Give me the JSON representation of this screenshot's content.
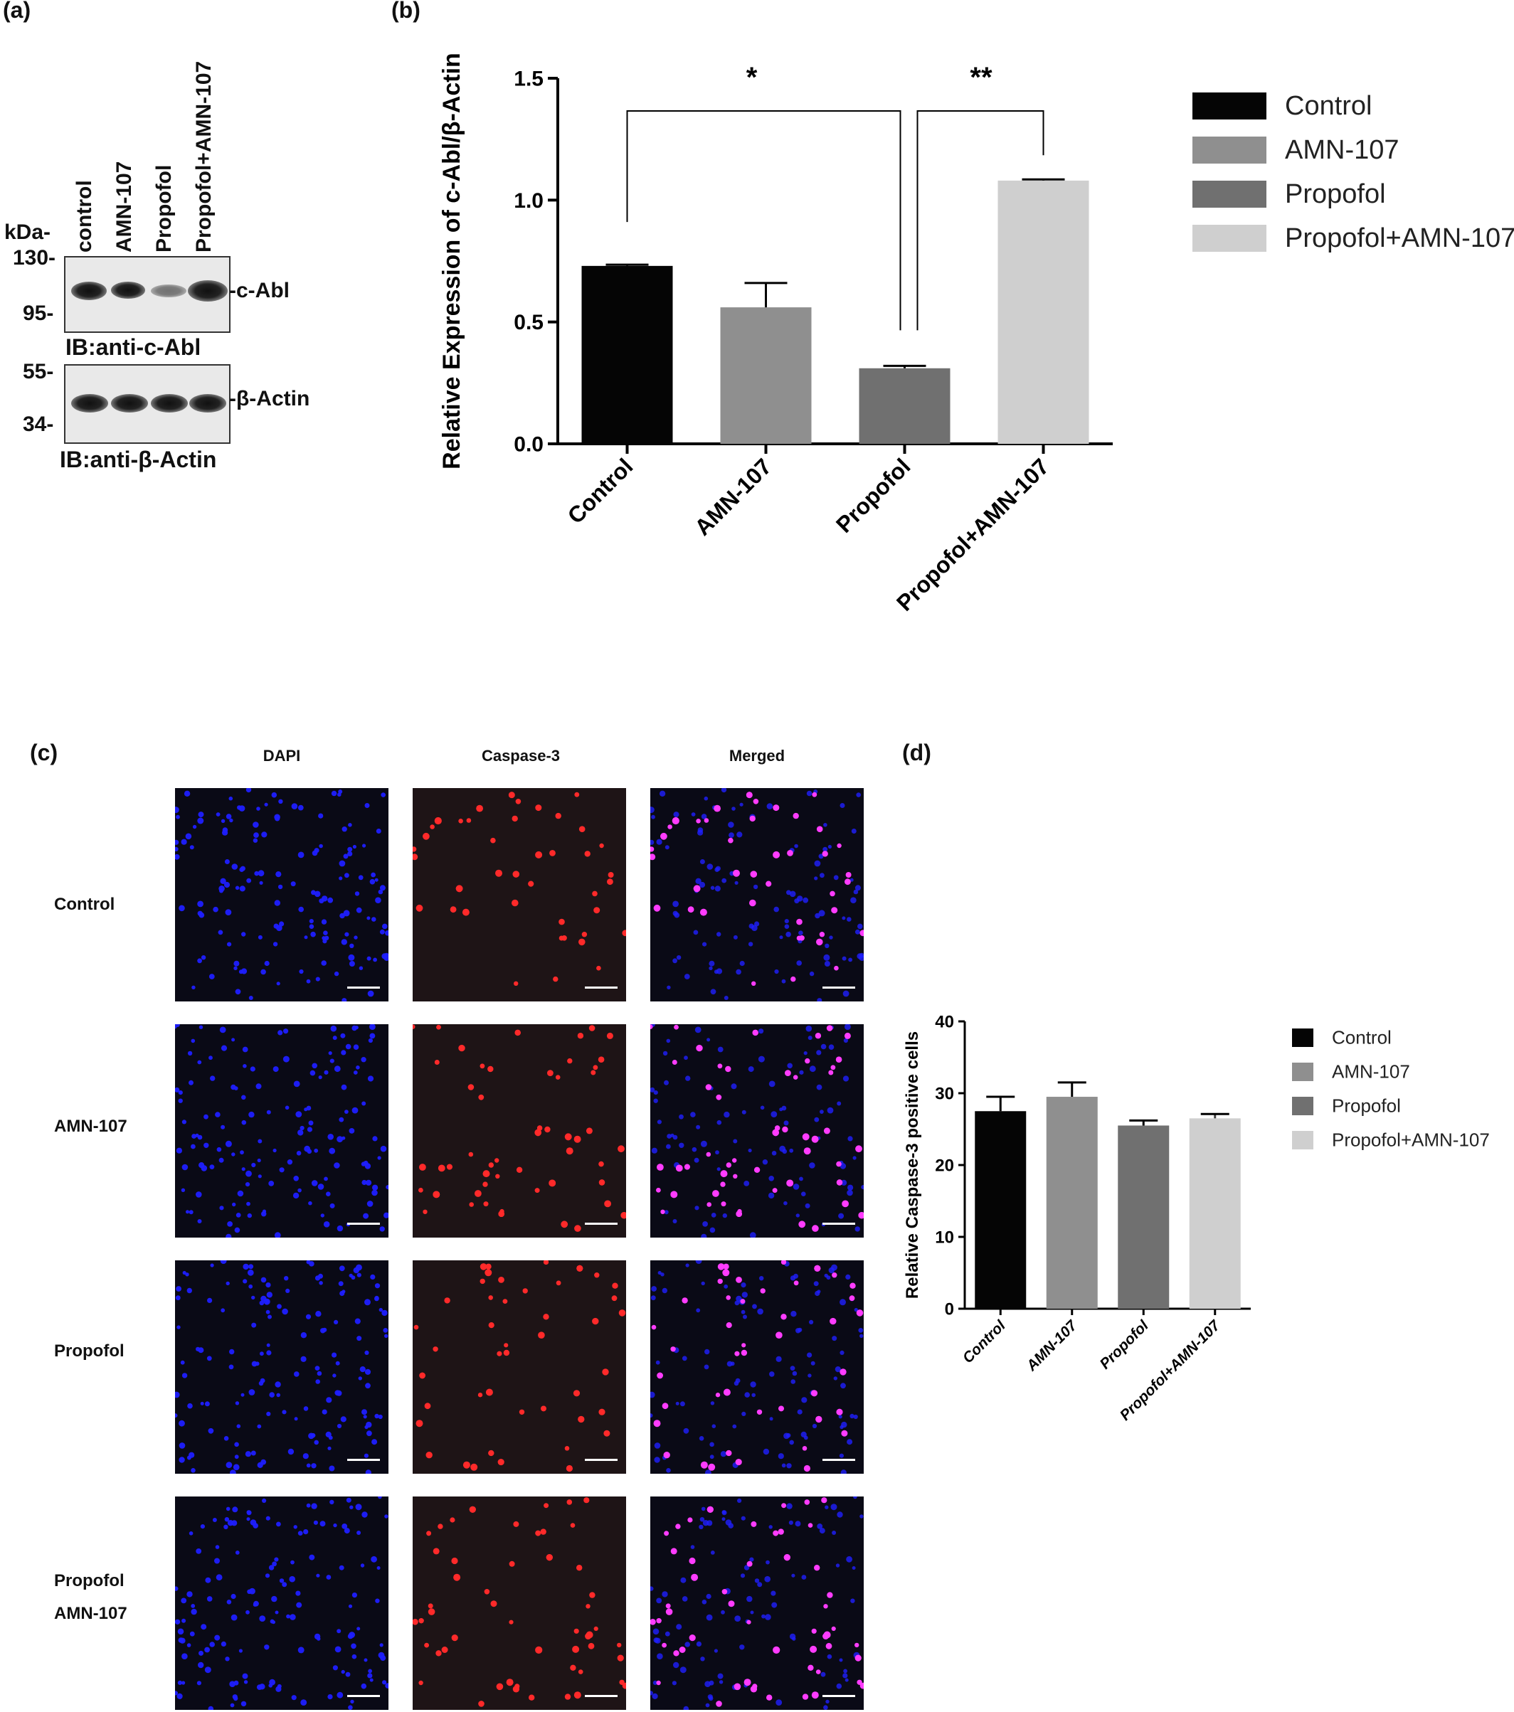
{
  "panels": {
    "a": "(a)",
    "b": "(b)",
    "c": "(c)",
    "d": "(d)"
  },
  "western_blot": {
    "lanes": [
      "control",
      "AMN-107",
      "Propofol",
      "Propofol+AMN-107"
    ],
    "kda_label": "kDa-",
    "markers_top": [
      "130-",
      "95-"
    ],
    "markers_bottom": [
      "55-",
      "34-"
    ],
    "band_top_label": "-c-Abl",
    "band_bottom_label": "-β-Actin",
    "caption_top": "IB:anti-c-Abl",
    "caption_bottom": "IB:anti-β-Actin",
    "band_intensity_top": [
      0.9,
      0.85,
      0.35,
      1.0
    ],
    "band_intensity_bottom": [
      0.9,
      0.9,
      0.9,
      0.9
    ]
  },
  "microscopy": {
    "columns": [
      "DAPI",
      "Caspase-3",
      "Merged"
    ],
    "rows": [
      "Control",
      "AMN-107",
      "Propofol",
      "Propofol\nAMN-107"
    ],
    "colors": {
      "dapi": "#1f1fff",
      "caspase": "#ff2a2a",
      "merged_dot": "#ff3cff"
    }
  },
  "chart_data": [
    {
      "type": "bar",
      "categories": [
        "Control",
        "AMN-107",
        "Propofol",
        "Propofol+AMN-107"
      ],
      "values": [
        0.73,
        0.56,
        0.31,
        1.08
      ],
      "errors": [
        0.005,
        0.1,
        0.01,
        0.005
      ],
      "colors": [
        "#050505",
        "#8f8f8f",
        "#707070",
        "#cfcfcf"
      ],
      "title": "",
      "xlabel": "",
      "ylabel": "Relative Expression of c-Abl/β-Actin",
      "ylim": [
        0,
        1.5
      ],
      "yticks": [
        "0.0",
        "0.5",
        "1.0",
        "1.5"
      ],
      "significance": [
        {
          "from": "Control",
          "to": "Propofol",
          "label": "*"
        },
        {
          "from": "Propofol",
          "to": "Propofol+AMN-107",
          "label": "**"
        }
      ],
      "legend": [
        "Control",
        "AMN-107",
        "Propofol",
        "Propofol+AMN-107"
      ],
      "legend_position": "right",
      "grid": false
    },
    {
      "type": "bar",
      "categories": [
        "Control",
        "AMN-107",
        "Propofol",
        "Propofol+AMN-107"
      ],
      "values": [
        27.5,
        29.5,
        25.5,
        26.5
      ],
      "errors": [
        2.0,
        2.0,
        0.7,
        0.6
      ],
      "colors": [
        "#050505",
        "#8f8f8f",
        "#707070",
        "#cfcfcf"
      ],
      "title": "",
      "xlabel": "",
      "ylabel": "Relative Caspase-3 positive cells",
      "ylim": [
        0,
        40
      ],
      "yticks": [
        "0",
        "10",
        "20",
        "30",
        "40"
      ],
      "legend": [
        "Control",
        "AMN-107",
        "Propofol",
        "Propofol+AMN-107"
      ],
      "legend_position": "right",
      "grid": false
    }
  ]
}
